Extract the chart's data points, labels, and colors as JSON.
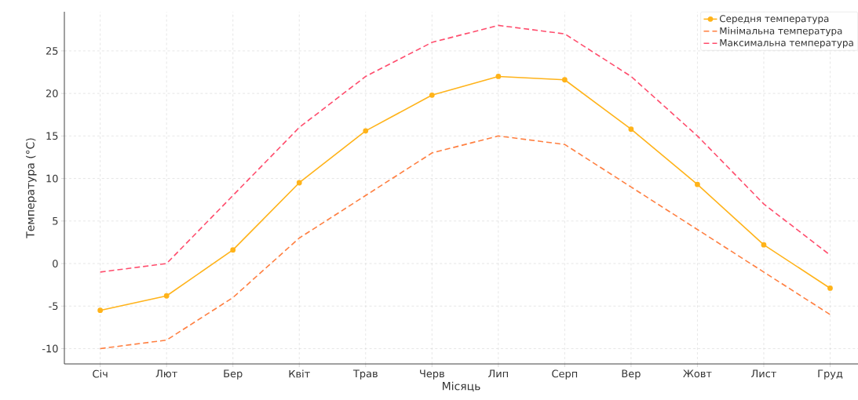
{
  "chart_data": {
    "type": "line",
    "xlabel": "Місяць",
    "ylabel": "Температура (°C)",
    "categories": [
      "Січ",
      "Лют",
      "Бер",
      "Квіт",
      "Трав",
      "Черв",
      "Лип",
      "Серп",
      "Вер",
      "Жовт",
      "Лист",
      "Груд"
    ],
    "series": [
      {
        "name": "Середня температура",
        "color": "#ffb31a",
        "marker": "circle",
        "line_style": "solid",
        "values": [
          -5.5,
          -3.8,
          1.6,
          9.5,
          15.6,
          19.8,
          22,
          21.6,
          15.8,
          9.3,
          2.2,
          -2.9
        ]
      },
      {
        "name": "Мінімальна температура",
        "color": "#ff7f40",
        "marker": "none",
        "line_style": "dashed",
        "values": [
          -10,
          -9,
          -4,
          3,
          8,
          13,
          15,
          14,
          9,
          4,
          -1,
          -6
        ]
      },
      {
        "name": "Максимальна температура",
        "color": "#ff4d6d",
        "marker": "none",
        "line_style": "dashed",
        "values": [
          -1,
          0,
          8,
          16,
          22,
          26,
          28,
          27,
          22,
          15,
          7,
          1
        ]
      }
    ],
    "ylim": [
      -11.8,
      29.6
    ],
    "yticks": [
      -10,
      -5,
      0,
      5,
      10,
      15,
      20,
      25
    ],
    "grid": true,
    "legend": "top right"
  }
}
